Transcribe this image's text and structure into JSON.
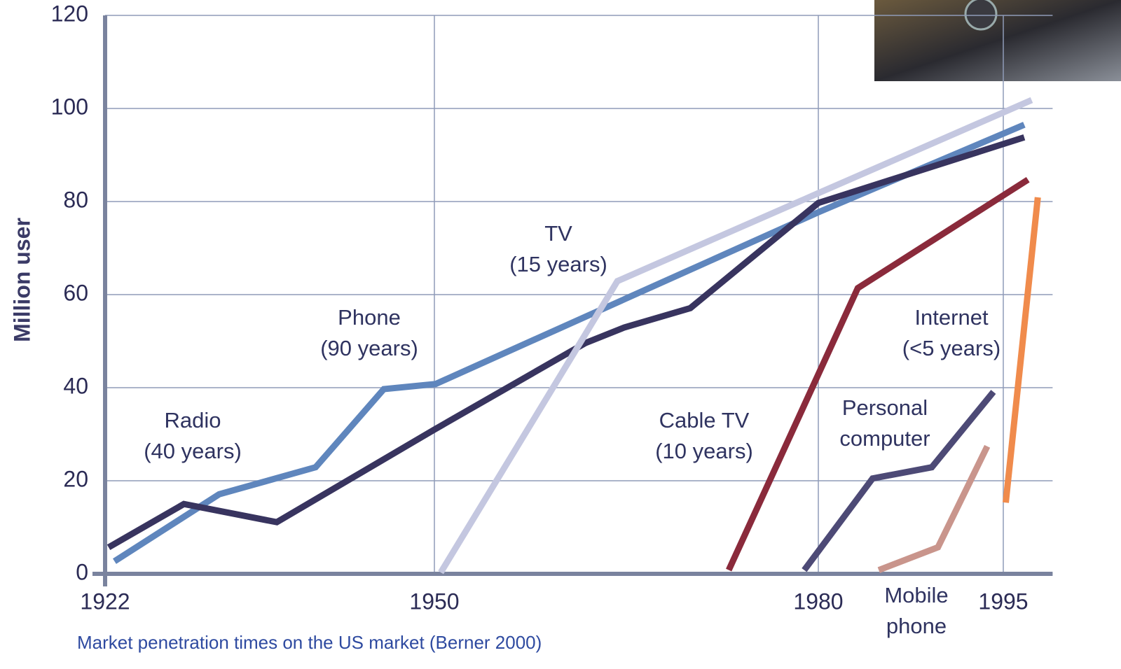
{
  "chart_data": {
    "type": "line",
    "y_label": "Million user",
    "caption": "Market penetration times on the US market (Berner 2000)",
    "xlim": [
      1922,
      1999
    ],
    "xticks": [
      1922,
      1950,
      1980,
      1995
    ],
    "ylim": [
      0,
      120
    ],
    "yticks": [
      0,
      20,
      40,
      60,
      80,
      100,
      120
    ],
    "grid": true,
    "series": [
      {
        "name": "Phone",
        "note": "(90 years)",
        "color": "#5f86bd",
        "x": [
          1922.8,
          1931.7,
          1939.9,
          1945.7,
          1950.1,
          1959.9,
          1980,
          1996.7
        ],
        "values": [
          2.7,
          17.1,
          22.9,
          39.7,
          40.8,
          52.9,
          77.7,
          96.5
        ]
      },
      {
        "name": "Radio",
        "note": "(40 years)",
        "color": "#38345f",
        "x": [
          1922.3,
          1928.7,
          1936.6,
          1950,
          1961.8,
          1964.8,
          1970,
          1980,
          1996.7
        ],
        "values": [
          5.7,
          15,
          11.1,
          31,
          49.6,
          52.9,
          57.1,
          79.7,
          93.8
        ]
      },
      {
        "name": "TV",
        "note": "(15 years)",
        "color": "#c4c7e0",
        "x": [
          1950.5,
          1960.9,
          1964.3,
          1980,
          1997.3
        ],
        "values": [
          0.3,
          47.4,
          62.9,
          81.8,
          101.8
        ]
      },
      {
        "name": "Cable TV",
        "note": "(10 years)",
        "color": "#8a2a3b",
        "x": [
          1973,
          1983.2,
          1997
        ],
        "values": [
          0.8,
          61.4,
          84.7
        ]
      },
      {
        "name": "Personal computer",
        "color": "#4d4a76",
        "x": [
          1978.9,
          1984.4,
          1989.2,
          1994.2
        ],
        "values": [
          0.8,
          20.5,
          22.9,
          39.1
        ]
      },
      {
        "name": "Mobile phone",
        "color": "#c9958c",
        "x": [
          1984.9,
          1989.7,
          1993.7
        ],
        "values": [
          0.8,
          5.7,
          27.4
        ]
      },
      {
        "name": "Internet",
        "note": "(<5 years)",
        "color": "#f08b4c",
        "x": [
          1995.2,
          1997.8
        ],
        "values": [
          15.3,
          80.9
        ]
      }
    ]
  }
}
